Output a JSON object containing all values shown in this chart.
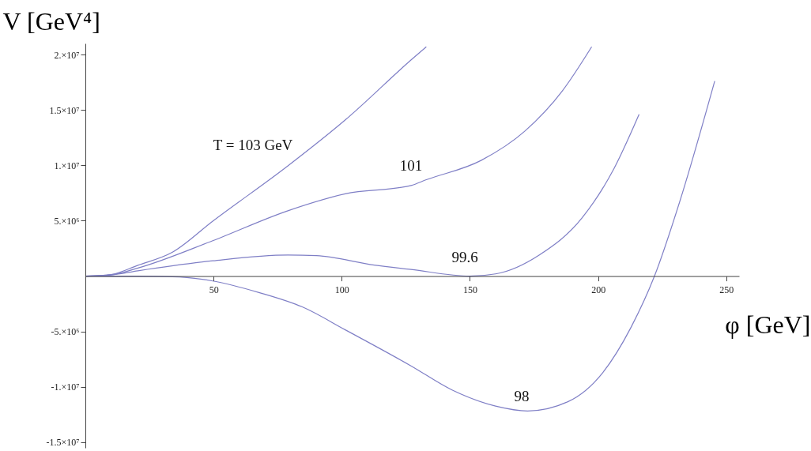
{
  "chart_data": {
    "type": "line",
    "xlabel": "φ [GeV]",
    "ylabel": "V [GeV⁴]",
    "xlim": [
      0,
      255
    ],
    "ylim": [
      -15500000,
      21000000
    ],
    "xticks": [
      50,
      100,
      150,
      200,
      250
    ],
    "yticks": [
      {
        "value": -15000000,
        "label": "-1.5×10⁷"
      },
      {
        "value": -10000000,
        "label": "-1.×10⁷"
      },
      {
        "value": -5000000,
        "label": "-5.×10⁶"
      },
      {
        "value": 5000000,
        "label": "5.×10⁶"
      },
      {
        "value": 10000000,
        "label": "1.×10⁷"
      },
      {
        "value": 15000000,
        "label": "1.5×10⁷"
      },
      {
        "value": 20000000,
        "label": "2.×10⁷"
      }
    ],
    "line_style": "solid",
    "series": [
      {
        "color": "#7f7fc6",
        "x": [
          0,
          10,
          20.5,
          34,
          49.7,
          79,
          101.4,
          127,
          133
        ],
        "values": [
          0,
          150000,
          980000,
          2160000,
          4960000,
          9950000,
          14100000,
          19500000,
          20700000
        ]
      },
      {
        "color": "#7f7fc6",
        "x": [
          0,
          10,
          20.5,
          49.7,
          79,
          101.4,
          127,
          133,
          154.5,
          171.3,
          186,
          197.5
        ],
        "values": [
          0,
          120000,
          730000,
          3200000,
          5900000,
          7430000,
          8180000,
          8700000,
          10460000,
          13060000,
          16700000,
          20700000
        ]
      },
      {
        "color": "#7f7fc6",
        "x": [
          0,
          10,
          20.5,
          49.7,
          79,
          90.2,
          112.7,
          127,
          150,
          160,
          177,
          193.8,
          206.2,
          216
        ],
        "values": [
          0,
          100000,
          480000,
          1380000,
          1900000,
          1850000,
          990000,
          600000,
          0,
          200000,
          1900000,
          5270000,
          9700000,
          14600000
        ]
      },
      {
        "color": "#7f7fc6",
        "x": [
          0,
          20,
          34,
          49.7,
          67.7,
          84.6,
          101.4,
          127,
          143.2,
          160,
          172.5,
          188.2,
          201.7,
          212.9,
          222,
          232,
          245.5
        ],
        "values": [
          0,
          -10000,
          -50000,
          -440000,
          -1480000,
          -2780000,
          -4850000,
          -8100000,
          -10300000,
          -11730000,
          -12170000,
          -11340000,
          -8750000,
          -4600000,
          0,
          6830000,
          17600000
        ]
      }
    ],
    "annotations": [
      "T = 103 GeV",
      "101",
      "99.6",
      "98"
    ]
  }
}
